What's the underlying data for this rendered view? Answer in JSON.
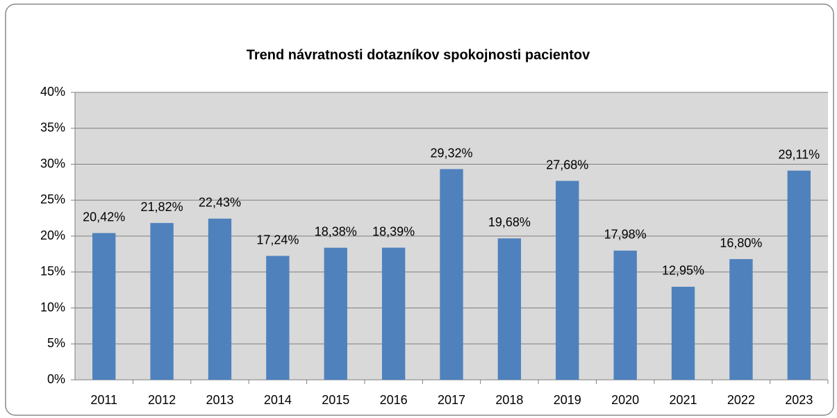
{
  "chart_data": {
    "type": "bar",
    "title": "Trend návratnosti dotazníkov spokojnosti pacientov",
    "categories": [
      "2011",
      "2012",
      "2013",
      "2014",
      "2015",
      "2016",
      "2017",
      "2018",
      "2019",
      "2020",
      "2021",
      "2022",
      "2023"
    ],
    "values": [
      20.42,
      21.82,
      22.43,
      17.24,
      18.38,
      18.39,
      29.32,
      19.68,
      27.68,
      17.98,
      12.95,
      16.8,
      29.11
    ],
    "value_labels": [
      "20,42%",
      "21,82%",
      "22,43%",
      "17,24%",
      "18,38%",
      "18,39%",
      "29,32%",
      "19,68%",
      "27,68%",
      "17,98%",
      "12,95%",
      "16,80%",
      "29,11%"
    ],
    "color": "#4f81bd",
    "ylim": [
      0,
      40
    ],
    "yticks": [
      {
        "value": 0,
        "label": "0%"
      },
      {
        "value": 5,
        "label": "5%"
      },
      {
        "value": 10,
        "label": "10%"
      },
      {
        "value": 15,
        "label": "15%"
      },
      {
        "value": 20,
        "label": "20%"
      },
      {
        "value": 25,
        "label": "25%"
      },
      {
        "value": 30,
        "label": "30%"
      },
      {
        "value": 35,
        "label": "35%"
      },
      {
        "value": 40,
        "label": "40%"
      }
    ],
    "grid": true
  }
}
